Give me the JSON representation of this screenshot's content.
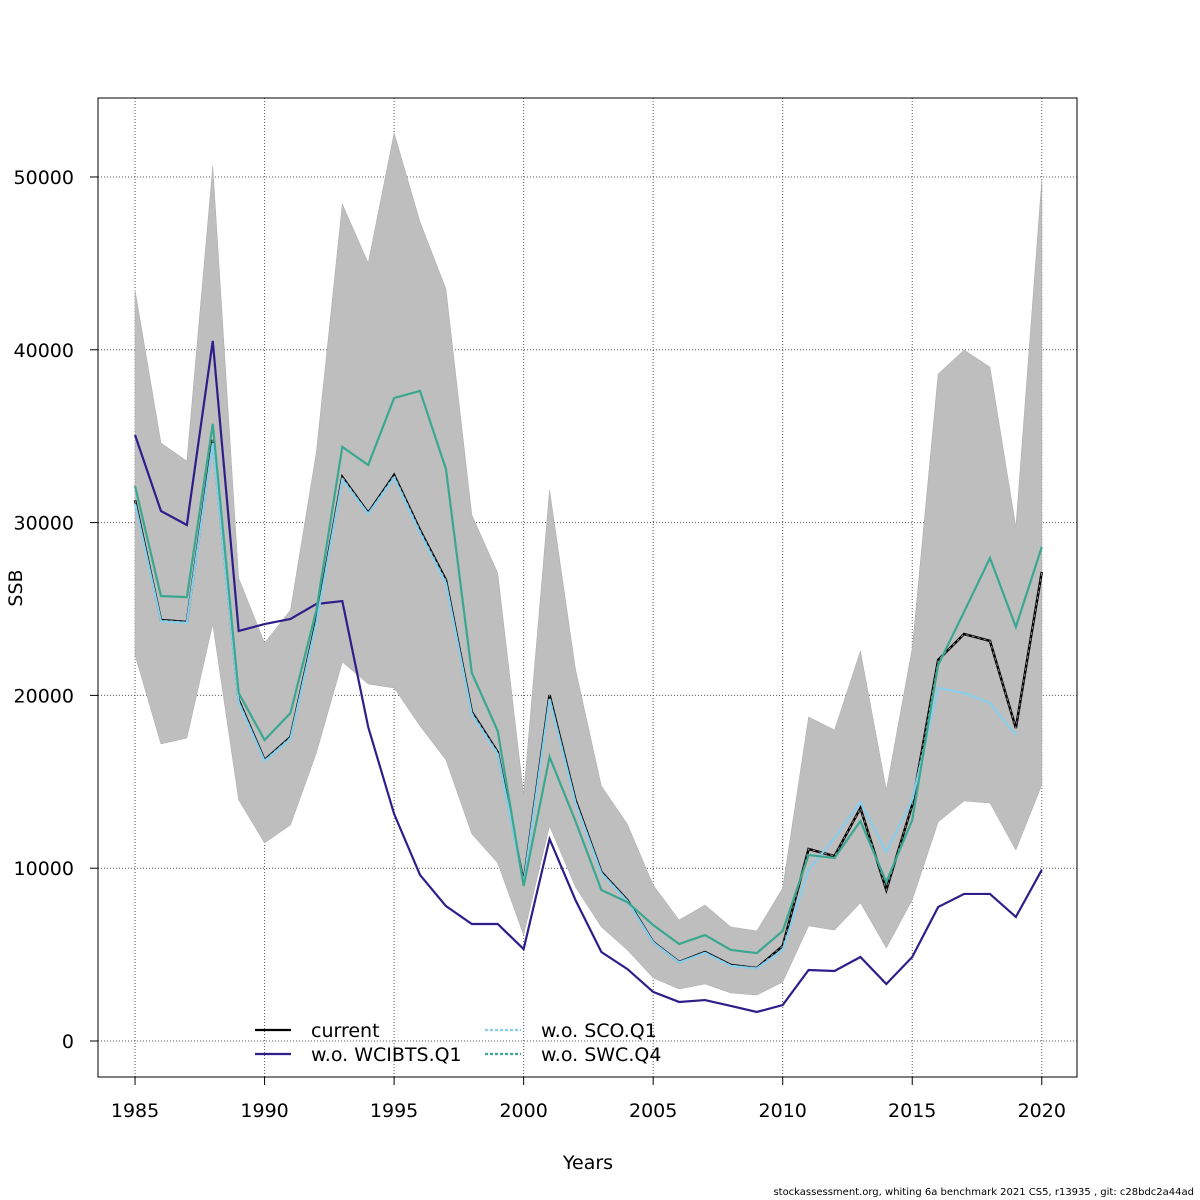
{
  "chart_data": {
    "type": "line",
    "title": "",
    "xlabel": "Years",
    "ylabel": "SSB",
    "xlim": [
      1983.57,
      2021.36
    ],
    "ylim": [
      -2083,
      54570
    ],
    "grid": true,
    "x_ticks": [
      1985,
      1990,
      1995,
      2000,
      2005,
      2010,
      2015,
      2020
    ],
    "y_ticks": [
      0,
      10000,
      20000,
      30000,
      40000,
      50000
    ],
    "legend_position": "bottom-left",
    "x": [
      1985,
      1986,
      1987,
      1988,
      1989,
      1990,
      1991,
      1992,
      1993,
      1994,
      1995,
      1996,
      1997,
      1998,
      1999,
      2000,
      2001,
      2002,
      2003,
      2004,
      2005,
      2006,
      2007,
      2008,
      2009,
      2010,
      2011,
      2012,
      2013,
      2014,
      2015,
      2016,
      2017,
      2018,
      2019,
      2020
    ],
    "band": {
      "upper": [
        43460,
        34610,
        33560,
        50640,
        26790,
        23030,
        24940,
        34090,
        48440,
        45020,
        52550,
        47400,
        43520,
        30440,
        27080,
        14240,
        31890,
        21530,
        14760,
        12560,
        9030,
        7000,
        7870,
        6600,
        6370,
        8850,
        18750,
        18000,
        22570,
        14530,
        22740,
        38600,
        39990,
        39000,
        29750,
        49830
      ],
      "lower": [
        22340,
        17190,
        17530,
        24130,
        13950,
        11460,
        12500,
        16670,
        21930,
        20660,
        20430,
        18230,
        16260,
        11980,
        10300,
        6130,
        12440,
        8910,
        6600,
        5270,
        3650,
        3010,
        3300,
        2780,
        2660,
        3410,
        6660,
        6420,
        7990,
        5380,
        8160,
        12670,
        13890,
        13770,
        11050,
        14810
      ],
      "color": "#bebebe"
    },
    "series": [
      {
        "name": "current",
        "color": "#000000",
        "dash": false,
        "values": [
          31300,
          24360,
          24250,
          34780,
          19730,
          16260,
          17590,
          24360,
          32640,
          30560,
          32750,
          29570,
          26680,
          19040,
          16720,
          9200,
          20020,
          13950,
          9780,
          8160,
          5730,
          4570,
          5150,
          4400,
          4220,
          5500,
          11110,
          10700,
          13480,
          8740,
          13660,
          22050,
          23550,
          23150,
          18110,
          27140
        ]
      },
      {
        "name": "w.o. WCIBTS.Q1",
        "color": "#2e1e8a",
        "dash": false,
        "values": [
          35070,
          30670,
          29860,
          40510,
          23730,
          24130,
          24420,
          25290,
          25460,
          18170,
          13140,
          9610,
          7810,
          6770,
          6770,
          5320,
          11690,
          8160,
          5150,
          4170,
          2840,
          2260,
          2370,
          2030,
          1680,
          2080,
          4110,
          4050,
          4860,
          3300,
          4860,
          7750,
          8510,
          8510,
          7180,
          9900
        ]
      },
      {
        "name": "w.o. SCO.Q1",
        "color": "#87ceeb",
        "dash": true,
        "values": [
          31100,
          24300,
          24200,
          34600,
          19600,
          16200,
          17500,
          24200,
          32500,
          30500,
          32600,
          29400,
          26500,
          18900,
          16600,
          9100,
          19800,
          13800,
          9700,
          8100,
          5700,
          4550,
          5100,
          4350,
          4200,
          5270,
          9900,
          11750,
          13830,
          10940,
          13950,
          20430,
          20140,
          19560,
          17710,
          null
        ]
      },
      {
        "name": "w.o. SWC.Q4",
        "color": "#3aa891",
        "dash": true,
        "values": [
          32120,
          25750,
          25690,
          35710,
          20140,
          17420,
          18980,
          24940,
          34380,
          33330,
          37210,
          37620,
          33100,
          21300,
          17940,
          8970,
          16440,
          12730,
          8740,
          8040,
          6710,
          5610,
          6130,
          5270,
          5090,
          6370,
          10760,
          10590,
          12730,
          9200,
          12790,
          21760,
          24830,
          27950,
          23960,
          28590
        ]
      }
    ]
  },
  "footer": "stockassessment.org, whiting 6a benchmark 2021 CS5, r13935 , git: c28bdc2a44ad"
}
